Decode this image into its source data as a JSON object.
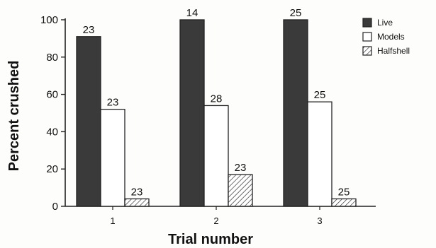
{
  "chart_data": {
    "type": "bar",
    "xlabel": "Trial number",
    "ylabel": "Percent crushed",
    "ylim": [
      0,
      100
    ],
    "yticks": [
      0,
      20,
      40,
      60,
      80,
      100
    ],
    "categories": [
      "1",
      "2",
      "3"
    ],
    "series": [
      {
        "name": "Live",
        "values": [
          91,
          100,
          100
        ],
        "labels": [
          "23",
          "14",
          "25"
        ],
        "fill": "#3a3a3a"
      },
      {
        "name": "Models",
        "values": [
          52,
          54,
          56
        ],
        "labels": [
          "23",
          "28",
          "25"
        ],
        "fill": "#ffffff"
      },
      {
        "name": "Halfshell",
        "values": [
          4,
          17,
          4
        ],
        "labels": [
          "23",
          "23",
          "25"
        ],
        "fill": "hatch"
      }
    ],
    "legend_position": "top-right",
    "grid": false
  }
}
